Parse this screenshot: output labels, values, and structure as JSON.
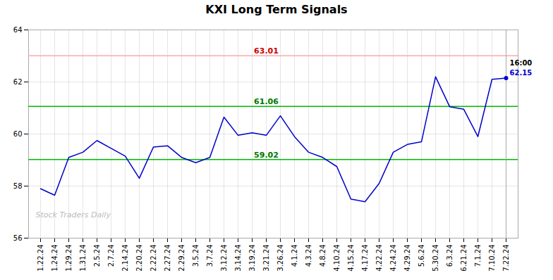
{
  "chart_data": {
    "type": "line",
    "title": "KXI Long Term Signals",
    "categories": [
      "1.22.24",
      "1.24.24",
      "1.29.24",
      "1.31.24",
      "2.5.24",
      "2.7.24",
      "2.14.24",
      "2.20.24",
      "2.22.24",
      "2.27.24",
      "2.29.24",
      "3.5.24",
      "3.7.24",
      "3.12.24",
      "3.14.24",
      "3.19.24",
      "3.21.24",
      "3.26.24",
      "4.1.24",
      "4.3.24",
      "4.8.24",
      "4.10.24",
      "4.15.24",
      "4.17.24",
      "4.22.24",
      "4.24.24",
      "4.29.24",
      "5.6.24",
      "5.30.24",
      "6.3.24",
      "6.21.24",
      "7.1.24",
      "7.10.24",
      "7.22.24"
    ],
    "values": [
      57.9,
      57.65,
      59.1,
      59.3,
      59.75,
      59.45,
      59.15,
      58.3,
      59.5,
      59.55,
      59.1,
      58.9,
      59.1,
      60.65,
      59.95,
      60.05,
      59.95,
      60.7,
      59.9,
      59.3,
      59.1,
      58.75,
      57.5,
      57.4,
      58.1,
      59.3,
      59.6,
      59.7,
      62.2,
      61.05,
      60.95,
      59.9,
      62.1,
      62.15
    ],
    "color": "#0000cc",
    "ylim": [
      56,
      64
    ],
    "yticks": [
      56,
      58,
      60,
      62,
      64
    ],
    "grid": true,
    "end_point": {
      "x": "7.22.24",
      "y": 62.15
    },
    "hlines": [
      {
        "y": 63.01,
        "label": "63.01",
        "color": "#ffaaaa",
        "label_color": "#cc0000"
      },
      {
        "y": 61.06,
        "label": "61.06",
        "color": "#00bb00",
        "label_color": "#007700"
      },
      {
        "y": 59.02,
        "label": "59.02",
        "color": "#00bb00",
        "label_color": "#007700"
      }
    ],
    "vlines": [
      {
        "x": "7.22.24",
        "color": "#999999"
      }
    ],
    "annotations": [
      {
        "text": "Stock Traders Daily",
        "color": "#bbbbbb"
      },
      {
        "text": "16:00",
        "x": "7.22.24",
        "y": 62.15,
        "color": "black"
      },
      {
        "text": "62.15",
        "x": "7.22.24",
        "y": 62.15,
        "color": "#0000cc"
      }
    ]
  }
}
